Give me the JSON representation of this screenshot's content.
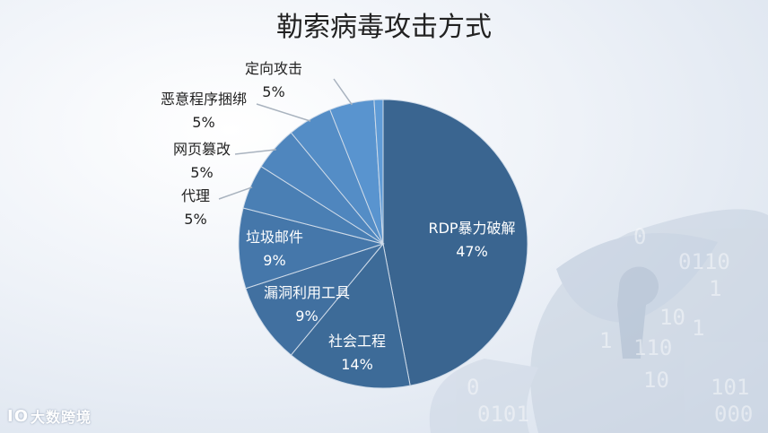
{
  "chart_data": {
    "type": "pie",
    "title": "勒索病毒攻击方式",
    "start_angle_deg": 0,
    "direction": "clockwise",
    "slices": [
      {
        "label": "RDP暴力破解",
        "value": 47,
        "display": "47%",
        "color": "#3a6590",
        "label_pos": "inside"
      },
      {
        "label": "社会工程",
        "value": 14,
        "display": "14%",
        "color": "#3d6b98",
        "label_pos": "inside"
      },
      {
        "label": "漏洞利用工具",
        "value": 9,
        "display": "9%",
        "color": "#4170a0",
        "label_pos": "inside"
      },
      {
        "label": "垃圾邮件",
        "value": 9,
        "display": "9%",
        "color": "#4577aa",
        "label_pos": "inside"
      },
      {
        "label": "代理",
        "value": 5,
        "display": "5%",
        "color": "#4a7fb4",
        "label_pos": "outside"
      },
      {
        "label": "网页篡改",
        "value": 5,
        "display": "5%",
        "color": "#4f86be",
        "label_pos": "outside"
      },
      {
        "label": "恶意程序捆绑",
        "value": 5,
        "display": "5%",
        "color": "#548dc6",
        "label_pos": "outside"
      },
      {
        "label": "定向攻击",
        "value": 5,
        "display": "5%",
        "color": "#5994cf",
        "label_pos": "outside"
      },
      {
        "label": "",
        "value": 1,
        "display": "",
        "color": "#5f9bd6",
        "label_pos": "none"
      }
    ],
    "legend": "none"
  },
  "watermark": {
    "mark": "IO",
    "text": "大数跨境"
  },
  "colors": {
    "leader_line": "#a9b3bf",
    "label_text": "#222222",
    "inner_label_text": "#ffffff"
  }
}
